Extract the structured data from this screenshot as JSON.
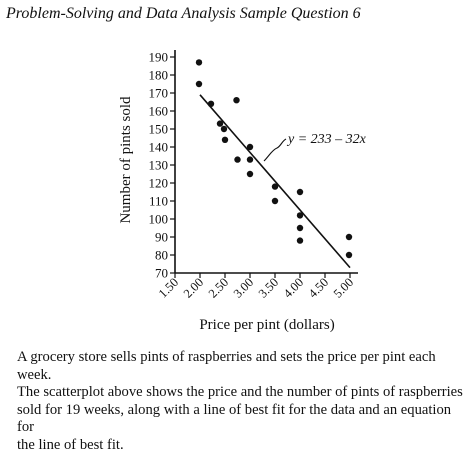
{
  "page": {
    "title": "Problem-Solving and Data Analysis Sample Question 6",
    "question_lines": [
      "A grocery store sells pints of raspberries and sets the price per pint each week.",
      "The scatterplot above shows the price and the number of pints of raspberries",
      "sold for 19 weeks, along with a line of best fit for the data and an equation for",
      "the line of best fit."
    ]
  },
  "chart_data": {
    "type": "scatter",
    "title": "",
    "xlabel": "Price per pint (dollars)",
    "ylabel": "Number of pints sold",
    "xlim": [
      1.5,
      5.0
    ],
    "ylim": [
      70,
      190
    ],
    "x_ticks": [
      "1.50",
      "2.00",
      "2.50",
      "3.00",
      "3.50",
      "4.00",
      "4.50",
      "5.00"
    ],
    "y_ticks": [
      "70",
      "80",
      "90",
      "100",
      "110",
      "120",
      "130",
      "140",
      "150",
      "160",
      "170",
      "180",
      "190"
    ],
    "grid": false,
    "series": [
      {
        "points": [
          {
            "x": 1.98,
            "y": 187
          },
          {
            "x": 1.98,
            "y": 175
          },
          {
            "x": 2.22,
            "y": 164
          },
          {
            "x": 2.4,
            "y": 153
          },
          {
            "x": 2.48,
            "y": 150
          },
          {
            "x": 2.5,
            "y": 144
          },
          {
            "x": 2.73,
            "y": 166
          },
          {
            "x": 2.75,
            "y": 133
          },
          {
            "x": 3.0,
            "y": 140
          },
          {
            "x": 3.0,
            "y": 133
          },
          {
            "x": 3.0,
            "y": 125
          },
          {
            "x": 3.5,
            "y": 118
          },
          {
            "x": 3.5,
            "y": 110
          },
          {
            "x": 4.0,
            "y": 115
          },
          {
            "x": 4.0,
            "y": 102
          },
          {
            "x": 4.0,
            "y": 95
          },
          {
            "x": 4.0,
            "y": 88
          },
          {
            "x": 4.98,
            "y": 90
          },
          {
            "x": 4.98,
            "y": 80
          }
        ]
      }
    ],
    "line_of_best_fit": {
      "intercept": 233,
      "slope": -32,
      "x_range": [
        2.0,
        5.0
      ],
      "equation": "y = 233 – 32x"
    },
    "colors": {
      "ink": "#111111",
      "background": "#ffffff"
    }
  }
}
